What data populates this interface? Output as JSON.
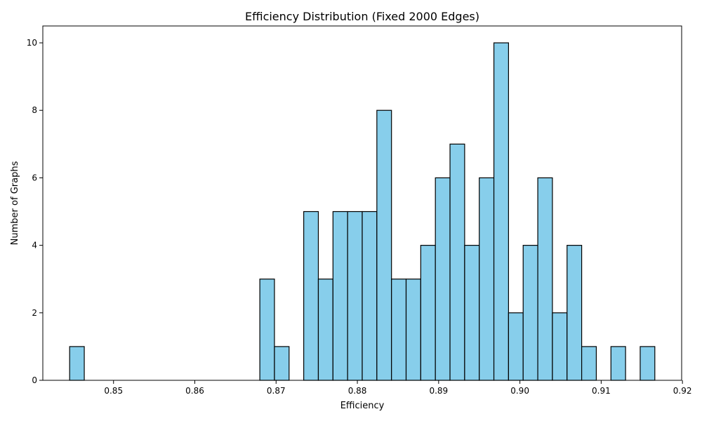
{
  "chart_data": {
    "type": "bar",
    "title": "Efficiency Distribution (Fixed 2000 Edges)",
    "xlabel": "Efficiency",
    "ylabel": "Number of Graphs",
    "xlim": [
      0.8413,
      0.9199
    ],
    "ylim": [
      0,
      10.5
    ],
    "xticks": [
      "0.85",
      "0.86",
      "0.87",
      "0.88",
      "0.89",
      "0.90",
      "0.91",
      "0.92"
    ],
    "yticks": [
      "0",
      "2",
      "4",
      "6",
      "8",
      "10"
    ],
    "bin_start": 0.8446,
    "bin_width": 0.0018,
    "counts": [
      1,
      0,
      0,
      0,
      0,
      0,
      0,
      0,
      0,
      0,
      0,
      0,
      0,
      3,
      1,
      0,
      5,
      3,
      5,
      5,
      5,
      8,
      3,
      3,
      4,
      6,
      7,
      4,
      6,
      10,
      2,
      4,
      6,
      2,
      4,
      1,
      0,
      1,
      0,
      1
    ],
    "color": "#87ceeb",
    "edge_color": "#000000",
    "grid": false,
    "legend": "none"
  }
}
